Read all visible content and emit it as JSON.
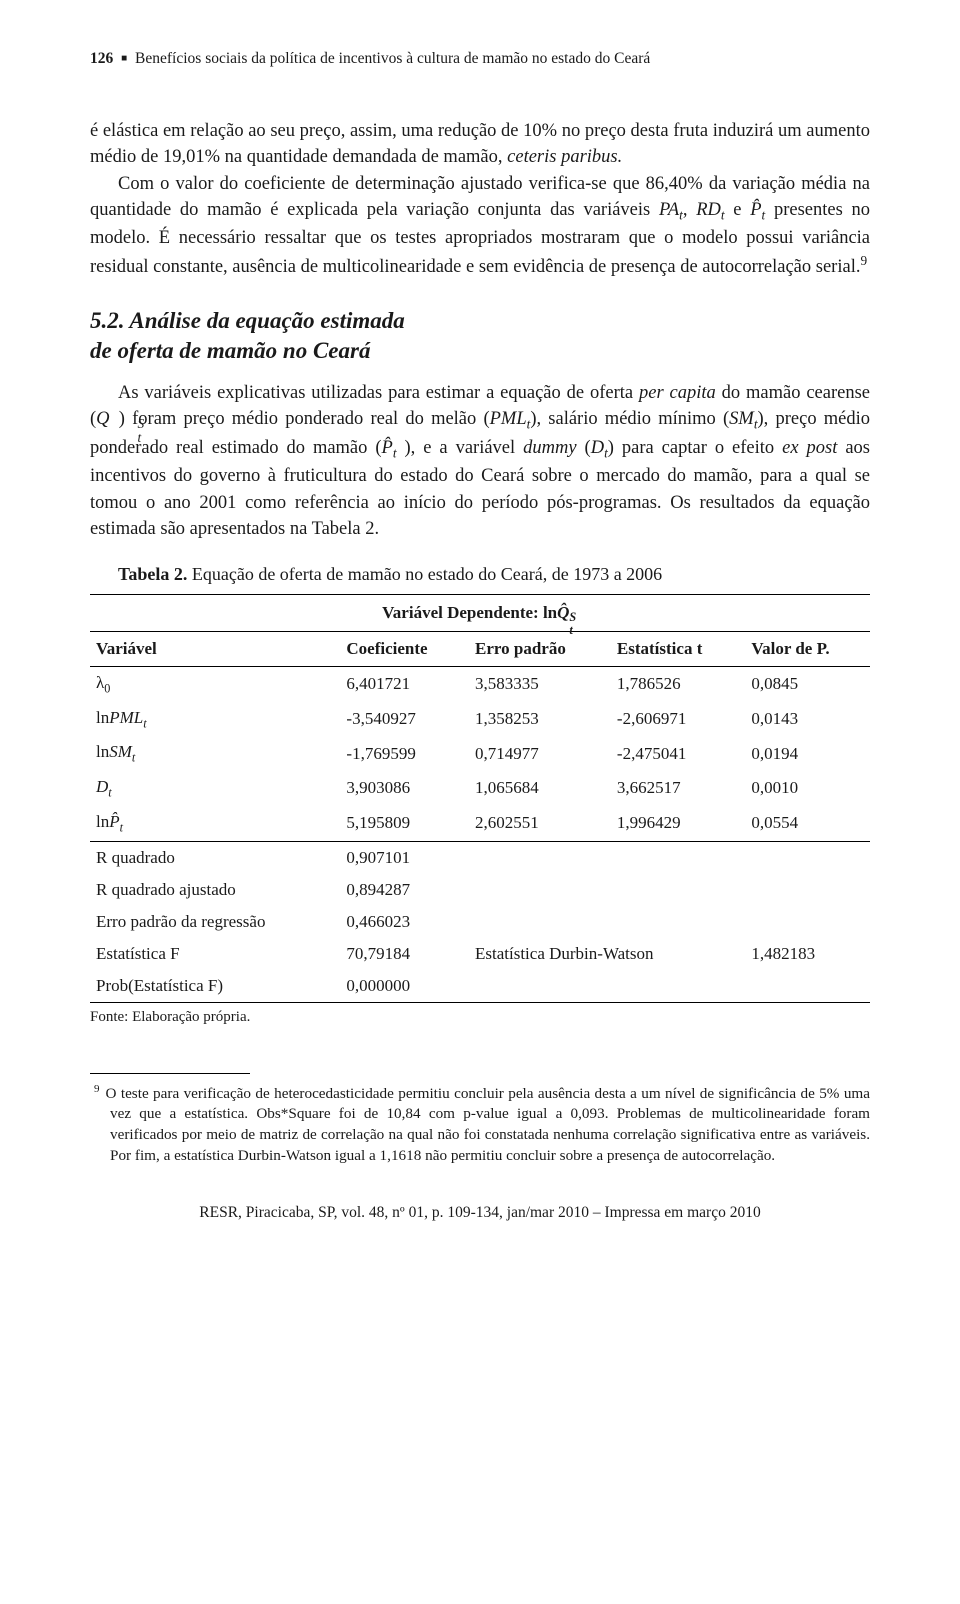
{
  "header": {
    "page_number": "126",
    "running_title": "Benefícios sociais da política de incentivos à cultura de mamão no estado do Ceará"
  },
  "para1": "é elástica em relação ao seu preço, assim, uma redução de 10% no preço desta fruta induzirá um aumento médio de 19,01% na quantidade demandada de mamão, ",
  "para1_italic": "ceteris paribus.",
  "para2_prefix": "Com o valor do coeficiente de determinação ajustado verifica-se que 86,40% da variação média na quantidade do mamão é explicada pela variação conjunta das variáveis ",
  "para2_mid": " presentes no modelo. É necessário ressaltar que os testes apropriados mostraram que o modelo possui variância residual constante, ausência de multicolinearidade e sem evidência de presença de autocorrelação serial.",
  "para2_fnref": "9",
  "heading_num": "5.2.",
  "heading_line1": " Análise da equação estimada",
  "heading_line2": "de oferta de mamão no Ceará",
  "para3": {
    "a": "As variáveis explicativas utilizadas para estimar a equação de oferta ",
    "percapita": "per capita",
    "b": " do mamão cearense (",
    "c": ") foram preço médio ponderado real do melão (",
    "d": "), salário médio mínimo (",
    "e": "), preço médio ponderado real estimado do mamão (",
    "f": " ), e a variável ",
    "dummy": "dummy",
    "g": " (",
    "h": ") para captar o efeito ",
    "expost": "ex post",
    "i": " aos incentivos do governo à fruticultura do estado do Ceará sobre o mercado do mamão, para a qual se tomou o ano 2001 como referência ao início do período pós-programas. Os resultados da equação estimada são apresentados na Tabela 2."
  },
  "table": {
    "caption_label": "Tabela 2.",
    "caption_text": " Equação de oferta de mamão no estado do Ceará, de 1973 a 2006",
    "dep_label_prefix": "Variável Dependente: ln",
    "headers": [
      "Variável",
      "Coeficiente",
      "Erro padrão",
      "Estatística t",
      "Valor de P."
    ],
    "rows": [
      {
        "var_html": "λ<sub>0</sub>",
        "coef": "6,401721",
        "se": "3,583335",
        "t": "1,786526",
        "p": "0,0845"
      },
      {
        "var_html": "ln<i>PML<sub>t</sub></i>",
        "coef": "-3,540927",
        "se": "1,358253",
        "t": "-2,606971",
        "p": "0,0143"
      },
      {
        "var_html": "ln<i>SM<sub>t</sub></i>",
        "coef": "-1,769599",
        "se": "0,714977",
        "t": "-2,475041",
        "p": "0,0194"
      },
      {
        "var_html": "<i>D<sub>t</sub></i>",
        "coef": "3,903086",
        "se": "1,065684",
        "t": "3,662517",
        "p": "0,0010"
      },
      {
        "var_html": "ln<i>P̂<sub>t</sub></i>",
        "coef": "5,195809",
        "se": "2,602551",
        "t": "1,996429",
        "p": "0,0554"
      }
    ],
    "stats": [
      {
        "label": "R quadrado",
        "value": "0,907101"
      },
      {
        "label": "R quadrado ajustado",
        "value": "0,894287"
      },
      {
        "label": "Erro padrão da regressão",
        "value": "0,466023"
      }
    ],
    "f_label": "Estatística F",
    "f_value": "70,79184",
    "dw_label": "Estatística Durbin-Watson",
    "dw_value": "1,482183",
    "probF_label": "Prob(Estatística F)",
    "probF_value": "0,000000",
    "source": "Fonte: Elaboração própria."
  },
  "footnote": {
    "num": "9",
    "text": "O teste para verificação de heterocedasticidade permitiu concluir pela ausência desta a um nível de significância de 5% uma vez que a estatística. Obs*Square foi de 10,84 com p-value igual a 0,093. Problemas de multicolinearidade foram verificados por meio de matriz de correlação na qual não foi constatada nenhuma correlação significativa entre as variáveis. Por fim, a estatística Durbin-Watson igual a 1,1618 não permitiu concluir sobre a presença de autocorrelação."
  },
  "imprint": "RESR, Piracicaba, SP, vol. 48, nº 01, p. 109-134, jan/mar 2010 – Impressa em março 2010"
}
